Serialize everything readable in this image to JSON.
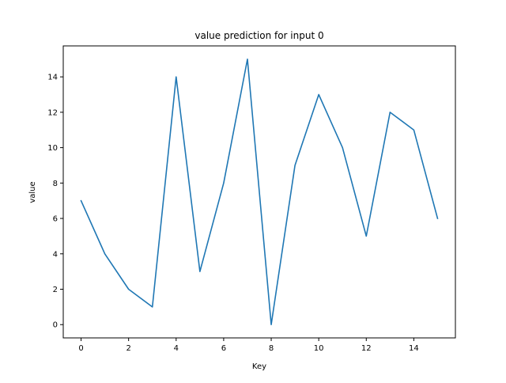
{
  "chart_data": {
    "type": "line",
    "title": "value prediction for input 0",
    "xlabel": "Key",
    "ylabel": "value",
    "x": [
      0,
      1,
      2,
      3,
      4,
      5,
      6,
      7,
      8,
      9,
      10,
      11,
      12,
      13,
      14,
      15
    ],
    "series": [
      {
        "values": [
          7,
          4,
          2,
          1,
          14,
          3,
          8,
          15,
          0,
          9,
          13,
          10,
          5,
          12,
          11,
          6
        ],
        "color": "#1f77b4"
      }
    ],
    "xlim": [
      -0.75,
      15.75
    ],
    "ylim": [
      -0.75,
      15.75
    ],
    "xticks": [
      0,
      2,
      4,
      6,
      8,
      10,
      12,
      14
    ],
    "yticks": [
      0,
      2,
      4,
      6,
      8,
      10,
      12,
      14
    ],
    "grid": false,
    "legend": "none"
  }
}
